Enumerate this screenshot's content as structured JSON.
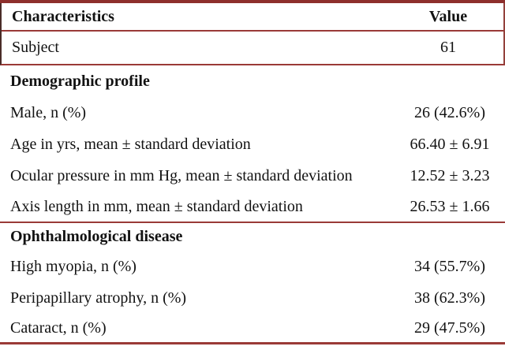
{
  "table": {
    "title_semantic": "patient-characteristics-table",
    "columns": [
      {
        "label": "Characteristics"
      },
      {
        "label": "Value"
      }
    ],
    "sections": [
      {
        "header": null,
        "rows": [
          {
            "label": "Subject",
            "value": "61"
          }
        ]
      },
      {
        "header": "Demographic profile",
        "rows": [
          {
            "label": "Male, n (%)",
            "value": "26 (42.6%)"
          },
          {
            "label": "Age in yrs, mean ± standard deviation",
            "value": "66.40 ± 6.91"
          },
          {
            "label": "Ocular pressure in mm Hg, mean ± standard deviation",
            "value": "12.52 ± 3.23"
          },
          {
            "label": "Axis length in mm, mean ± standard deviation",
            "value": "26.53 ± 1.66"
          }
        ]
      },
      {
        "header": "Ophthalmological disease",
        "rows": [
          {
            "label": "High myopia, n (%)",
            "value": "34 (55.7%)"
          },
          {
            "label": "Peripapillary atrophy, n (%)",
            "value": "38 (62.3%)"
          },
          {
            "label": "Cataract, n (%)",
            "value": "29 (47.5%)"
          }
        ]
      }
    ],
    "colors": {
      "rule": "#9a3a37",
      "top_border": "#8e2f2c",
      "text": "#121212",
      "background": "#ffffff"
    }
  }
}
